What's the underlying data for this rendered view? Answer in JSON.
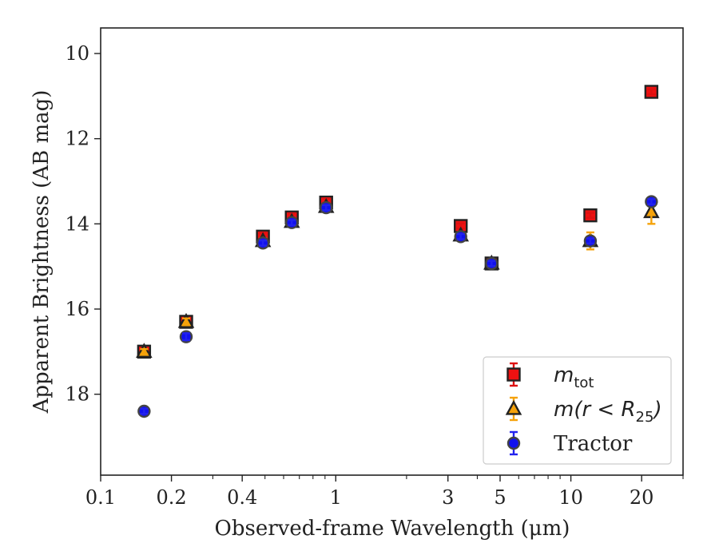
{
  "chart_data": {
    "type": "scatter",
    "xlabel": "Observed-frame Wavelength (μm)",
    "ylabel": "Apparent Brightness (AB mag)",
    "xscale": "log",
    "yaxis_inverted": true,
    "xlim": [
      0.1,
      30
    ],
    "ylim": [
      19.9,
      9.4
    ],
    "xticks": [
      {
        "value": 0.1,
        "label": "0.1"
      },
      {
        "value": 0.2,
        "label": "0.2"
      },
      {
        "value": 0.4,
        "label": "0.4"
      },
      {
        "value": 1,
        "label": "1"
      },
      {
        "value": 3,
        "label": "3"
      },
      {
        "value": 5,
        "label": "5"
      },
      {
        "value": 10,
        "label": "10"
      },
      {
        "value": 20,
        "label": "20"
      }
    ],
    "yticks": [
      {
        "value": 10,
        "label": "10"
      },
      {
        "value": 12,
        "label": "12"
      },
      {
        "value": 14,
        "label": "14"
      },
      {
        "value": 16,
        "label": "16"
      },
      {
        "value": 18,
        "label": "18"
      }
    ],
    "grid": false,
    "legend_position": "lower-right",
    "series": [
      {
        "key": "mtot",
        "marker": "square",
        "legend_main": "m",
        "legend_sub": "tot",
        "color": "#ee1111",
        "errcolor": "#dd1111",
        "edgecolor": "#222222",
        "points": [
          {
            "x": 0.153,
            "y": 17.0,
            "err": 0.08
          },
          {
            "x": 0.231,
            "y": 16.3,
            "err": 0.08
          },
          {
            "x": 0.49,
            "y": 14.3,
            "err": 0.1
          },
          {
            "x": 0.65,
            "y": 13.85,
            "err": 0.1
          },
          {
            "x": 0.91,
            "y": 13.5,
            "err": 0.1
          },
          {
            "x": 3.4,
            "y": 14.05,
            "err": 0.06
          },
          {
            "x": 4.6,
            "y": 14.93,
            "err": 0.06
          },
          {
            "x": 12.1,
            "y": 13.8,
            "err": 0.06
          },
          {
            "x": 22.0,
            "y": 10.9,
            "err": 0.06
          }
        ]
      },
      {
        "key": "mr25",
        "marker": "triangle",
        "legend_main": "m(r < R",
        "legend_sub": "25",
        "legend_end": ")",
        "color": "#f5a20a",
        "errcolor": "#f5a20a",
        "edgecolor": "#222222",
        "points": [
          {
            "x": 0.153,
            "y": 17.0,
            "err": 0.06
          },
          {
            "x": 0.231,
            "y": 16.3,
            "err": 0.08
          },
          {
            "x": 0.49,
            "y": 14.4,
            "err": 0.06
          },
          {
            "x": 0.65,
            "y": 13.95,
            "err": 0.06
          },
          {
            "x": 0.91,
            "y": 13.6,
            "err": 0.06
          },
          {
            "x": 3.4,
            "y": 14.27,
            "err": 0.06
          },
          {
            "x": 4.6,
            "y": 14.93,
            "err": 0.06
          },
          {
            "x": 12.1,
            "y": 14.4,
            "err": 0.2
          },
          {
            "x": 22.0,
            "y": 13.72,
            "err": 0.28
          }
        ]
      },
      {
        "key": "tractor",
        "marker": "circle",
        "legend_main": "Tractor",
        "color": "#1111ee",
        "errcolor": "#2222ee",
        "edgecolor": "#444444",
        "points": [
          {
            "x": 0.153,
            "y": 18.4,
            "err": 0.06
          },
          {
            "x": 0.231,
            "y": 16.65,
            "err": 0.08
          },
          {
            "x": 0.49,
            "y": 14.45,
            "err": 0.06
          },
          {
            "x": 0.65,
            "y": 13.97,
            "err": 0.06
          },
          {
            "x": 0.91,
            "y": 13.62,
            "err": 0.06
          },
          {
            "x": 3.4,
            "y": 14.3,
            "err": 0.06
          },
          {
            "x": 4.6,
            "y": 14.93,
            "err": 0.06
          },
          {
            "x": 12.1,
            "y": 14.4,
            "err": 0.06
          },
          {
            "x": 22.0,
            "y": 13.48,
            "err": 0.06
          }
        ]
      }
    ]
  }
}
